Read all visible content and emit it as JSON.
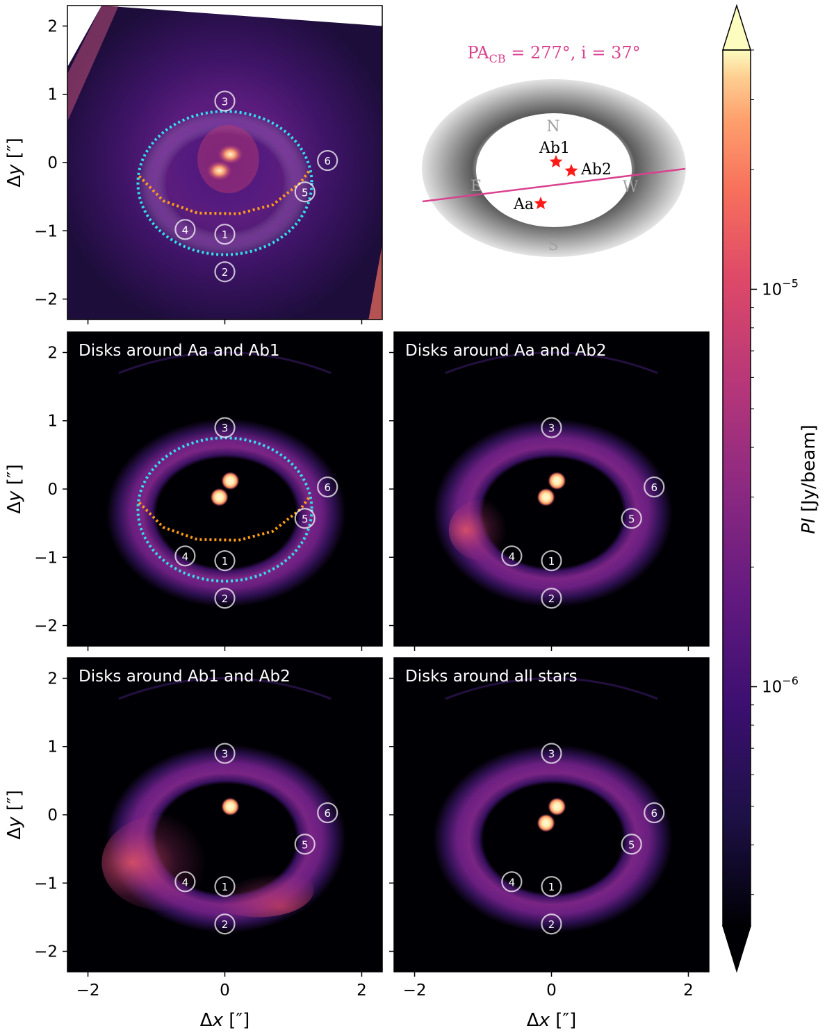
{
  "chart_data": {
    "type": "image-grid",
    "x_label_math": "Δx",
    "y_label_math": "Δy",
    "axis_unit": "[″]",
    "xlim": [
      -2.3,
      2.3
    ],
    "ylim": [
      -2.3,
      2.3
    ],
    "xticks": [
      -2,
      0,
      2
    ],
    "yticks": [
      -2,
      -1,
      0,
      1,
      2
    ],
    "tick_labels": {
      "-2": "−2",
      "-1": "−1",
      "0": "0",
      "1": "1",
      "2": "2"
    },
    "markers": [
      {
        "id": "1",
        "x": 0.0,
        "y": -1.05
      },
      {
        "id": "2",
        "x": 0.0,
        "y": -1.6
      },
      {
        "id": "3",
        "x": 0.0,
        "y": 0.9
      },
      {
        "id": "4",
        "x": -0.58,
        "y": -0.98
      },
      {
        "id": "5",
        "x": 1.17,
        "y": -0.43
      },
      {
        "id": "6",
        "x": 1.5,
        "y": 0.03
      }
    ],
    "stars": [
      {
        "name": "Aa",
        "x": -0.08,
        "y": -0.12
      },
      {
        "name": "Ab1",
        "x": 0.08,
        "y": 0.12
      }
    ],
    "overlays": {
      "cyan_ellipse": {
        "cx": 0.0,
        "cy": -0.3,
        "rx": 1.27,
        "ry": 1.05,
        "color": "#33e0ee"
      },
      "orange_arc": {
        "color": "#ff9d1a",
        "points": [
          [
            -1.25,
            -0.2
          ],
          [
            -0.9,
            -0.56
          ],
          [
            -0.4,
            -0.74
          ],
          [
            0.2,
            -0.75
          ],
          [
            0.7,
            -0.62
          ],
          [
            1.1,
            -0.3
          ],
          [
            1.25,
            -0.1
          ]
        ]
      }
    },
    "panels": [
      {
        "title": "",
        "kind": "observation",
        "overlays": true,
        "stars": [
          "Aa",
          "Ab1"
        ]
      },
      {
        "title": "Disks around Aa and Ab1",
        "kind": "model",
        "overlays": true,
        "stars": [
          "Aa",
          "Ab1"
        ]
      },
      {
        "title": "Disks around Aa and Ab2",
        "kind": "model",
        "overlays": false,
        "stars": [
          "Aa",
          "Ab1"
        ]
      },
      {
        "title": "Disks around Ab1 and Ab2",
        "kind": "model",
        "overlays": false,
        "stars": [
          "Ab1"
        ]
      },
      {
        "title": "Disks around all stars",
        "kind": "model",
        "overlays": false,
        "stars": [
          "Aa",
          "Ab1"
        ]
      }
    ],
    "colorbar": {
      "label_math": "PI",
      "label_unit": "[Jy/beam]",
      "scale": "log",
      "vmin": 2.5e-07,
      "vmax": 4e-05,
      "ticks": [
        {
          "base": "10",
          "exp": "−6",
          "value": 1e-06
        },
        {
          "base": "10",
          "exp": "−5",
          "value": 1e-05
        }
      ],
      "extend": "both",
      "colormap": "magma"
    },
    "schematic": {
      "title_main": "PA",
      "title_sub": "CB",
      "title_rest": " = 277°, i = 37°",
      "title_color": "#d9418e",
      "compass": [
        "N",
        "E",
        "W",
        "S"
      ],
      "stars": [
        "Ab1",
        "Ab2",
        "Aa"
      ],
      "star_color": "#ff1a1a",
      "line_color": "#d9418e"
    }
  }
}
